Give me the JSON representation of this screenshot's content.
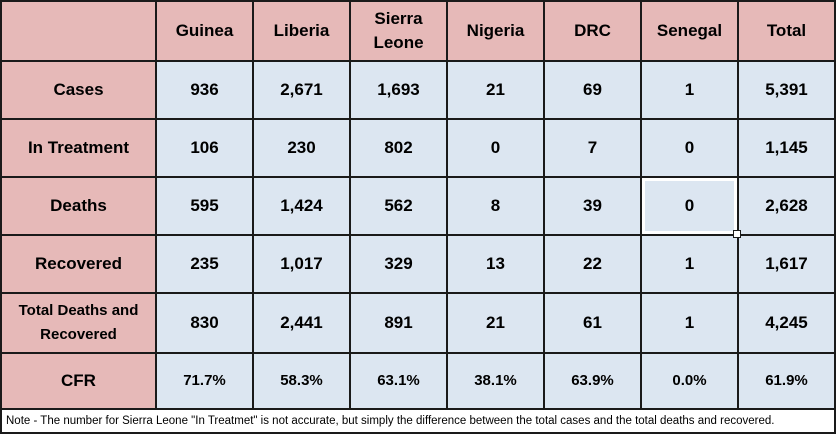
{
  "columns": [
    "",
    "Guinea",
    "Liberia",
    "Sierra Leone",
    "Nigeria",
    "DRC",
    "Senegal",
    "Total"
  ],
  "rows": [
    {
      "label": "Cases",
      "values": [
        "936",
        "2,671",
        "1,693",
        "21",
        "69",
        "1",
        "5,391"
      ]
    },
    {
      "label": "In Treatment",
      "values": [
        "106",
        "230",
        "802",
        "0",
        "7",
        "0",
        "1,145"
      ]
    },
    {
      "label": "Deaths",
      "values": [
        "595",
        "1,424",
        "562",
        "8",
        "39",
        "0",
        "2,628"
      ]
    },
    {
      "label": "Recovered",
      "values": [
        "235",
        "1,017",
        "329",
        "13",
        "22",
        "1",
        "1,617"
      ]
    },
    {
      "label": "Total Deaths and Recovered",
      "values": [
        "830",
        "2,441",
        "891",
        "21",
        "61",
        "1",
        "4,245"
      ]
    },
    {
      "label": "CFR",
      "values": [
        "71.7%",
        "58.3%",
        "63.1%",
        "38.1%",
        "63.9%",
        "0.0%",
        "61.9%"
      ]
    }
  ],
  "note": "Note - The number for Sierra Leone \"In Treatmet\" is not accurate, but simply the difference between the total cases and the total deaths and recovered.",
  "colors": {
    "header_bg": "#e6b9b8",
    "cell_bg": "#dce6f1",
    "border": "#1a1a1a"
  }
}
